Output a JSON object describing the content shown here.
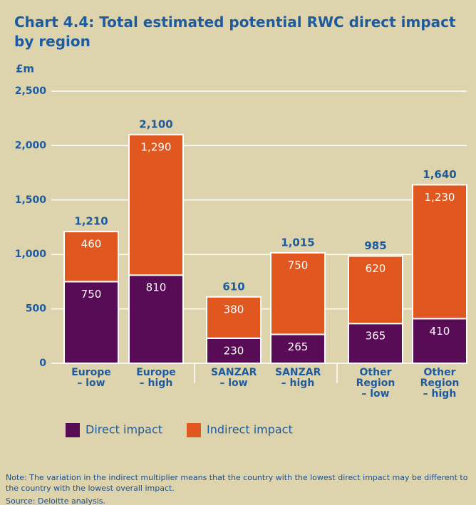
{
  "chart_data": {
    "type": "stacked_bar",
    "title": "Chart 4.4: Total estimated potential RWC direct impact by region",
    "y_axis_label": "£m",
    "categories": [
      "Europe – low",
      "Europe – high",
      "SANZAR – low",
      "SANZAR – high",
      "Other Region – low",
      "Other Region – high"
    ],
    "series": [
      {
        "name": "Direct impact",
        "color": "#580c55",
        "values": [
          750,
          810,
          230,
          265,
          365,
          410
        ]
      },
      {
        "name": "Indirect impact",
        "color": "#e0581f",
        "values": [
          460,
          1290,
          380,
          750,
          620,
          1230
        ],
        "value_labels": [
          "460",
          "1,290",
          "380",
          "750",
          "620",
          "1,230"
        ]
      }
    ],
    "totals": [
      1210,
      2100,
      610,
      1015,
      985,
      1640
    ],
    "total_labels": [
      "1,210",
      "2,100",
      "610",
      "1,015",
      "985",
      "1,640"
    ],
    "ylim": [
      0,
      2500
    ],
    "yticks": [
      0,
      500,
      {
        "value": 1000,
        "label": "1,000"
      },
      {
        "value": 1500,
        "label": "1,500"
      },
      {
        "value": 2000,
        "label": "2,000"
      },
      {
        "value": 2500,
        "label": "2,500"
      }
    ],
    "grid": true,
    "note": "Note: The variation in the indirect multiplier means that the country with the lowest direct impact may be different to the country with the lowest overall impact.",
    "source": "Source: Deloitte analysis."
  }
}
